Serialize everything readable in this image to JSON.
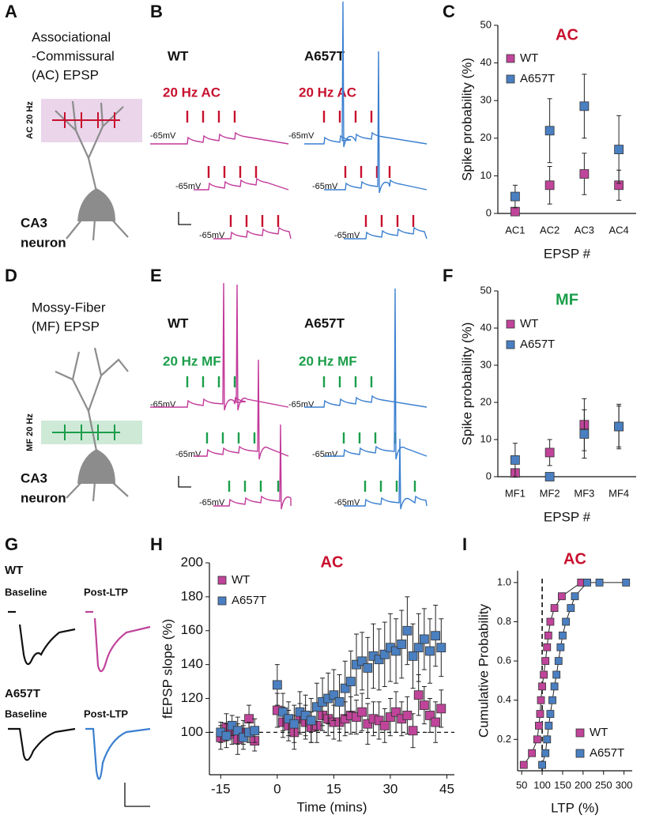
{
  "panel_labels": [
    "A",
    "B",
    "C",
    "D",
    "E",
    "F",
    "G",
    "H",
    "I"
  ],
  "panel_a": {
    "title": [
      "Associational",
      "-Commissural",
      "(AC) EPSP"
    ],
    "stim_label": "AC 20 Hz",
    "cell": [
      "CA3",
      "neuron"
    ]
  },
  "panel_b": {
    "groups": [
      "WT",
      "A657T"
    ],
    "stim": [
      "20 Hz AC",
      "20 Hz AC"
    ],
    "potentials": [
      "-65mV",
      "-65mV",
      "-65mV",
      "-65mV",
      "-65mV",
      "-65mV"
    ]
  },
  "panel_d": {
    "title": [
      "Mossy-Fiber",
      "(MF) EPSP"
    ],
    "stim_label": "MF 20 Hz",
    "cell": [
      "CA3",
      "neuron"
    ]
  },
  "panel_e": {
    "groups": [
      "WT",
      "A657T"
    ],
    "stim": [
      "20 Hz MF",
      "20 Hz MF"
    ],
    "potentials": [
      "-65mV",
      "-65mV",
      "-65mV",
      "-65mV",
      "-65mV",
      "-65mV"
    ]
  },
  "panel_g": {
    "groups": [
      "WT",
      "A657T"
    ],
    "conditions": [
      "Baseline",
      "Post-LTP",
      "Baseline",
      "Post-LTP"
    ]
  },
  "chart_data": [
    {
      "type": "errorbar",
      "title": "AC",
      "title_color": "#c8102e",
      "ylabel": "Spike probability (%)",
      "xlabel": "EPSP #",
      "categories": [
        "AC1",
        "AC2",
        "AC3",
        "AC4"
      ],
      "ylim": [
        0,
        50
      ],
      "yticks": [
        0,
        10,
        20,
        30,
        40,
        50
      ],
      "legend": "upper left",
      "series": [
        {
          "name": "WT",
          "color": "#c0449a",
          "values": [
            0.5,
            7.5,
            10.5,
            7.5
          ],
          "errors": [
            0,
            5,
            5.5,
            4
          ]
        },
        {
          "name": "A657T",
          "color": "#4a7fc1",
          "values": [
            4.5,
            22,
            28.5,
            17
          ],
          "errors": [
            3,
            8.5,
            8.5,
            9
          ]
        }
      ]
    },
    {
      "type": "errorbar",
      "title": "MF",
      "title_color": "#1a9e4a",
      "ylabel": "Spike probability (%)",
      "xlabel": "EPSP #",
      "categories": [
        "MF1",
        "MF2",
        "MF3",
        "MF4"
      ],
      "ylim": [
        0,
        50
      ],
      "yticks": [
        0,
        10,
        20,
        30,
        40,
        50
      ],
      "legend": "upper left",
      "series": [
        {
          "name": "WT",
          "color": "#c0449a",
          "values": [
            1,
            6.5,
            14,
            13.5
          ],
          "errors": [
            0,
            3.5,
            7,
            5.5
          ]
        },
        {
          "name": "A657T",
          "color": "#4a7fc1",
          "values": [
            4.5,
            0,
            11.5,
            13.5
          ],
          "errors": [
            4.5,
            0,
            6.5,
            6
          ]
        }
      ]
    },
    {
      "type": "errorbar",
      "title": "AC",
      "title_color": "#c8102e",
      "ylabel": "fEPSP slope (%)",
      "xlabel": "Time (mins)",
      "x": [
        -15,
        -13.5,
        -12,
        -10.5,
        -9,
        -7.5,
        -6,
        0,
        1.5,
        3,
        4.5,
        6,
        7.5,
        9,
        10.5,
        12,
        13.5,
        15,
        16.5,
        18,
        19.5,
        21,
        22.5,
        24,
        25.5,
        27,
        28.5,
        30,
        31.5,
        33,
        34.5,
        36,
        37.5,
        39,
        40.5,
        42,
        43.5
      ],
      "xlim": [
        -18,
        47
      ],
      "xticks": [
        -15,
        0,
        15,
        30,
        45
      ],
      "ylim": [
        75,
        200
      ],
      "yticks": [
        100,
        120,
        140,
        160,
        180,
        200
      ],
      "reference_y": 100,
      "legend": "upper left",
      "series": [
        {
          "name": "WT",
          "color": "#c0449a",
          "values": [
            97,
            103,
            99,
            96,
            100,
            108,
            95,
            113,
            106,
            104,
            100,
            108,
            106,
            103,
            104,
            110,
            108,
            106,
            106,
            108,
            110,
            109,
            112,
            105,
            108,
            107,
            104,
            109,
            112,
            108,
            110,
            101,
            122,
            116,
            110,
            106,
            114
          ],
          "errors": [
            7,
            8,
            6,
            9,
            7,
            8,
            6,
            10,
            9,
            9,
            10,
            9,
            10,
            9,
            10,
            9,
            10,
            10,
            11,
            10,
            11,
            10,
            11,
            12,
            10,
            11,
            10,
            11,
            12,
            10,
            11,
            10,
            12,
            11,
            10,
            12,
            11
          ]
        },
        {
          "name": "A657T",
          "color": "#4a7fc1",
          "values": [
            100,
            98,
            104,
            101,
            97,
            100,
            101,
            128,
            112,
            108,
            105,
            112,
            110,
            107,
            115,
            118,
            120,
            122,
            118,
            126,
            130,
            140,
            142,
            138,
            145,
            143,
            146,
            150,
            148,
            152,
            160,
            145,
            150,
            155,
            148,
            157,
            150
          ],
          "errors": [
            6,
            7,
            6,
            8,
            7,
            6,
            7,
            12,
            11,
            10,
            11,
            12,
            12,
            13,
            14,
            14,
            15,
            15,
            16,
            16,
            18,
            18,
            17,
            18,
            19,
            18,
            19,
            20,
            19,
            20,
            20,
            19,
            20,
            18,
            19,
            18,
            17
          ]
        }
      ]
    },
    {
      "type": "line",
      "title": "AC",
      "title_color": "#c8102e",
      "ylabel": "Cumulative Probability",
      "xlabel": "LTP (%)",
      "xlim": [
        40,
        320
      ],
      "xticks": [
        50,
        100,
        150,
        200,
        250,
        300
      ],
      "ylim": [
        0.04,
        1.06
      ],
      "yticks": [
        0.2,
        0.4,
        0.6,
        0.8,
        {
          "value": 1,
          "label": "1.0"
        }
      ],
      "reference_x": 100,
      "legend": "lower right",
      "series": [
        {
          "name": "WT",
          "color": "#c0449a",
          "x": [
            55,
            75,
            88,
            92,
            95,
            97,
            100,
            104,
            108,
            112,
            115,
            120,
            130,
            148,
            195
          ],
          "values": [
            0.07,
            0.13,
            0.2,
            0.27,
            0.33,
            0.4,
            0.47,
            0.53,
            0.6,
            0.67,
            0.73,
            0.8,
            0.87,
            0.93,
            1.0
          ]
        },
        {
          "name": "A657T",
          "color": "#4a7fc1",
          "x": [
            100,
            108,
            112,
            116,
            120,
            125,
            130,
            135,
            140,
            145,
            150,
            158,
            170,
            180,
            210,
            240,
            305
          ],
          "values": [
            0.07,
            0.13,
            0.2,
            0.27,
            0.33,
            0.4,
            0.47,
            0.53,
            0.6,
            0.67,
            0.73,
            0.8,
            0.87,
            0.93,
            1.0,
            1.0,
            1.0
          ]
        }
      ]
    }
  ]
}
